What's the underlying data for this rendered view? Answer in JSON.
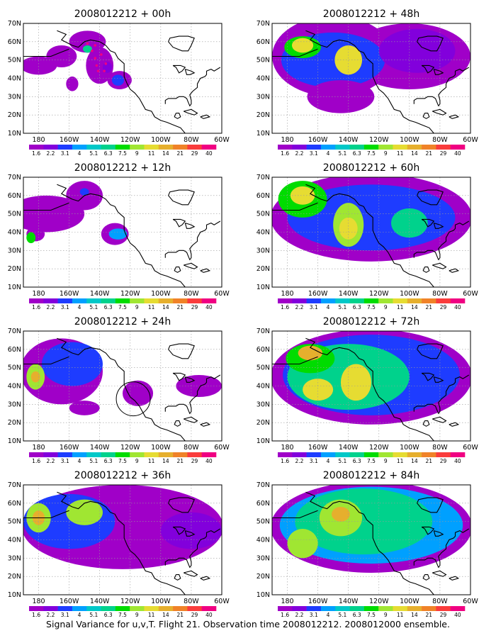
{
  "caption": "Signal Variance for u,v,T. Flight 21. Observation time 2008012212. 2008012000 ensemble.",
  "colorbar": {
    "labels": [
      "1.6",
      "2.2",
      "3.1",
      "4",
      "5.1",
      "6.3",
      "7.5",
      "9",
      "11",
      "14",
      "21",
      "29",
      "40"
    ],
    "colors": [
      "#a000c8",
      "#8200dc",
      "#1e3cff",
      "#00a0ff",
      "#00c8c8",
      "#00d28c",
      "#00dc00",
      "#a0e632",
      "#e6dc32",
      "#e6af2d",
      "#f08228",
      "#fa3c3c",
      "#f00082"
    ]
  },
  "axes": {
    "lon_labels": [
      "180",
      "160W",
      "140W",
      "120W",
      "100W",
      "80W",
      "60W"
    ],
    "lat_labels": [
      "10N",
      "20N",
      "30N",
      "40N",
      "50N",
      "60N",
      "70N"
    ],
    "lon_range": [
      -190,
      -60
    ],
    "lat_range": [
      10,
      70
    ]
  },
  "panels": [
    {
      "title": "2008012212 + 00h",
      "blobs": [
        {
          "lon": -148,
          "lat": 60,
          "rx": 12,
          "ry": 6,
          "level": 0
        },
        {
          "lon": -180,
          "lat": 47,
          "rx": 12,
          "ry": 5,
          "level": 0
        },
        {
          "lon": -165,
          "lat": 52,
          "rx": 10,
          "ry": 6,
          "level": 0
        },
        {
          "lon": -140,
          "lat": 47,
          "rx": 9,
          "ry": 10,
          "level": 0
        },
        {
          "lon": -127,
          "lat": 39,
          "rx": 8,
          "ry": 5,
          "level": 0
        },
        {
          "lon": -158,
          "lat": 37,
          "rx": 4,
          "ry": 4,
          "level": 0
        },
        {
          "lon": -148,
          "lat": 56,
          "rx": 3,
          "ry": 2,
          "level": 5
        },
        {
          "lon": -128,
          "lat": 39,
          "rx": 4,
          "ry": 3,
          "level": 2
        },
        {
          "lon": -135,
          "lat": 46,
          "rx": 3,
          "ry": 3,
          "level": 1
        }
      ]
    },
    {
      "title": "2008012212 + 48h",
      "blobs": [
        {
          "lon": -150,
          "lat": 52,
          "rx": 40,
          "ry": 22,
          "level": 0
        },
        {
          "lon": -100,
          "lat": 52,
          "rx": 40,
          "ry": 18,
          "level": 0
        },
        {
          "lon": -150,
          "lat": 50,
          "rx": 34,
          "ry": 15,
          "level": 2
        },
        {
          "lon": -95,
          "lat": 55,
          "rx": 25,
          "ry": 12,
          "level": 1
        },
        {
          "lon": -170,
          "lat": 57,
          "rx": 12,
          "ry": 6,
          "level": 6
        },
        {
          "lon": -140,
          "lat": 50,
          "rx": 9,
          "ry": 8,
          "level": 8
        },
        {
          "lon": -170,
          "lat": 58,
          "rx": 7,
          "ry": 4,
          "level": 8
        },
        {
          "lon": -145,
          "lat": 30,
          "rx": 22,
          "ry": 9,
          "level": 0
        }
      ]
    },
    {
      "title": "2008012212 + 12h",
      "blobs": [
        {
          "lon": -175,
          "lat": 50,
          "rx": 25,
          "ry": 10,
          "level": 0
        },
        {
          "lon": -150,
          "lat": 60,
          "rx": 12,
          "ry": 8,
          "level": 0
        },
        {
          "lon": -130,
          "lat": 39,
          "rx": 9,
          "ry": 6,
          "level": 0
        },
        {
          "lon": -128,
          "lat": 39,
          "rx": 6,
          "ry": 3,
          "level": 3
        },
        {
          "lon": -182,
          "lat": 39,
          "rx": 6,
          "ry": 4,
          "level": 0
        },
        {
          "lon": -185,
          "lat": 37,
          "rx": 3,
          "ry": 3,
          "level": 6
        },
        {
          "lon": -150,
          "lat": 62,
          "rx": 3,
          "ry": 2,
          "level": 2
        }
      ]
    },
    {
      "title": "2008012212 + 60h",
      "blobs": [
        {
          "lon": -125,
          "lat": 48,
          "rx": 66,
          "ry": 24,
          "level": 0
        },
        {
          "lon": -125,
          "lat": 48,
          "rx": 55,
          "ry": 18,
          "level": 2
        },
        {
          "lon": -170,
          "lat": 58,
          "rx": 16,
          "ry": 10,
          "level": 6
        },
        {
          "lon": -140,
          "lat": 44,
          "rx": 10,
          "ry": 12,
          "level": 7
        },
        {
          "lon": -140,
          "lat": 42,
          "rx": 6,
          "ry": 6,
          "level": 8
        },
        {
          "lon": -170,
          "lat": 60,
          "rx": 8,
          "ry": 5,
          "level": 8
        },
        {
          "lon": -100,
          "lat": 45,
          "rx": 12,
          "ry": 8,
          "level": 5
        }
      ]
    },
    {
      "title": "2008012212 + 24h",
      "blobs": [
        {
          "lon": -165,
          "lat": 48,
          "rx": 27,
          "ry": 18,
          "level": 0
        },
        {
          "lon": -158,
          "lat": 52,
          "rx": 20,
          "ry": 12,
          "level": 2
        },
        {
          "lon": -182,
          "lat": 45,
          "rx": 6,
          "ry": 7,
          "level": 7
        },
        {
          "lon": -182,
          "lat": 45,
          "rx": 3,
          "ry": 3,
          "level": 9
        },
        {
          "lon": -115,
          "lat": 36,
          "rx": 10,
          "ry": 7,
          "level": 0
        },
        {
          "lon": -75,
          "lat": 40,
          "rx": 15,
          "ry": 6,
          "level": 0
        },
        {
          "lon": -150,
          "lat": 28,
          "rx": 10,
          "ry": 4,
          "level": 0
        }
      ]
    },
    {
      "title": "2008012212 + 72h",
      "blobs": [
        {
          "lon": -125,
          "lat": 45,
          "rx": 66,
          "ry": 26,
          "level": 0
        },
        {
          "lon": -125,
          "lat": 46,
          "rx": 58,
          "ry": 22,
          "level": 2
        },
        {
          "lon": -140,
          "lat": 45,
          "rx": 40,
          "ry": 18,
          "level": 5
        },
        {
          "lon": -165,
          "lat": 55,
          "rx": 16,
          "ry": 8,
          "level": 6
        },
        {
          "lon": -135,
          "lat": 42,
          "rx": 10,
          "ry": 10,
          "level": 8
        },
        {
          "lon": -165,
          "lat": 58,
          "rx": 8,
          "ry": 4,
          "level": 9
        },
        {
          "lon": -160,
          "lat": 38,
          "rx": 10,
          "ry": 6,
          "level": 8
        }
      ]
    },
    {
      "title": "2008012212 + 36h",
      "blobs": [
        {
          "lon": -125,
          "lat": 47,
          "rx": 66,
          "ry": 23,
          "level": 0
        },
        {
          "lon": -160,
          "lat": 50,
          "rx": 30,
          "ry": 15,
          "level": 2
        },
        {
          "lon": -80,
          "lat": 45,
          "rx": 20,
          "ry": 10,
          "level": 1
        },
        {
          "lon": -180,
          "lat": 52,
          "rx": 8,
          "ry": 8,
          "level": 7
        },
        {
          "lon": -180,
          "lat": 52,
          "rx": 4,
          "ry": 4,
          "level": 9
        },
        {
          "lon": -150,
          "lat": 55,
          "rx": 12,
          "ry": 7,
          "level": 7
        }
      ]
    },
    {
      "title": "2008012212 + 84h",
      "blobs": [
        {
          "lon": -125,
          "lat": 47,
          "rx": 66,
          "ry": 25,
          "level": 0
        },
        {
          "lon": -125,
          "lat": 48,
          "rx": 60,
          "ry": 21,
          "level": 3
        },
        {
          "lon": -130,
          "lat": 50,
          "rx": 45,
          "ry": 18,
          "level": 5
        },
        {
          "lon": -145,
          "lat": 52,
          "rx": 14,
          "ry": 10,
          "level": 7
        },
        {
          "lon": -145,
          "lat": 54,
          "rx": 6,
          "ry": 4,
          "level": 9
        },
        {
          "lon": -170,
          "lat": 38,
          "rx": 10,
          "ry": 8,
          "level": 7
        }
      ]
    }
  ]
}
